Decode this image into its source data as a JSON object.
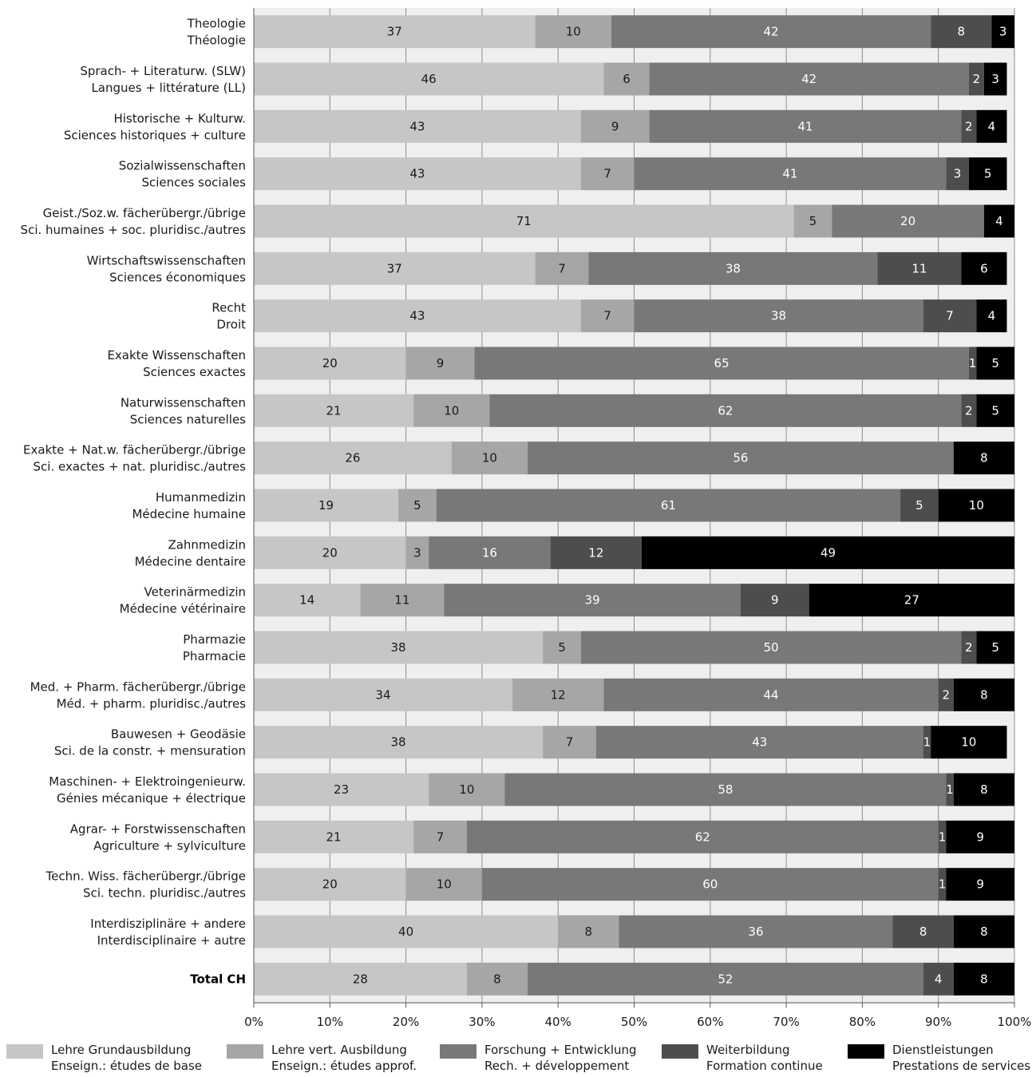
{
  "chart_data": {
    "type": "bar",
    "orientation": "horizontal",
    "stacked": true,
    "xlim": [
      0,
      100
    ],
    "x_tick_labels": [
      "0%",
      "10%",
      "20%",
      "30%",
      "40%",
      "50%",
      "60%",
      "70%",
      "80%",
      "90%",
      "100%"
    ],
    "grid": true,
    "legend_position": "bottom",
    "categories": [
      {
        "line1": "Theologie",
        "line2": "Théologie"
      },
      {
        "line1": "Sprach- + Literaturw. (SLW)",
        "line2": "Langues + littérature (LL)"
      },
      {
        "line1": "Historische + Kulturw.",
        "line2": "Sciences historiques + culture"
      },
      {
        "line1": "Sozialwissenschaften",
        "line2": "Sciences sociales"
      },
      {
        "line1": "Geist./Soz.w. fächerübergr./übrige",
        "line2": "Sci. humaines + soc. pluridisc./autres"
      },
      {
        "line1": "Wirtschaftswissenschaften",
        "line2": "Sciences économiques"
      },
      {
        "line1": "Recht",
        "line2": "Droit"
      },
      {
        "line1": "Exakte Wissenschaften",
        "line2": "Sciences exactes"
      },
      {
        "line1": "Naturwissenschaften",
        "line2": "Sciences naturelles"
      },
      {
        "line1": "Exakte + Nat.w. fächerübergr./übrige",
        "line2": "Sci. exactes + nat. pluridisc./autres"
      },
      {
        "line1": "Humanmedizin",
        "line2": "Médecine humaine"
      },
      {
        "line1": "Zahnmedizin",
        "line2": "Médecine dentaire"
      },
      {
        "line1": "Veterinärmedizin",
        "line2": "Médecine vétérinaire"
      },
      {
        "line1": "Pharmazie",
        "line2": "Pharmacie"
      },
      {
        "line1": "Med. + Pharm. fächerübergr./übrige",
        "line2": "Méd. + pharm. pluridisc./autres"
      },
      {
        "line1": "Bauwesen + Geodäsie",
        "line2": "Sci. de la constr. + mensuration"
      },
      {
        "line1": "Maschinen- + Elektroingenieurw.",
        "line2": "Génies mécanique + électrique"
      },
      {
        "line1": "Agrar- + Forstwissenschaften",
        "line2": "Agriculture + sylviculture"
      },
      {
        "line1": "Techn. Wiss. fächerübergr./übrige",
        "line2": "Sci. techn. pluridisc./autres"
      },
      {
        "line1": "Interdisziplinäre + andere",
        "line2": "Interdisciplinaire + autre"
      },
      {
        "line1": "Total CH",
        "line2": "",
        "bold": true
      }
    ],
    "series": [
      {
        "name": "Lehre Grundausbildung",
        "name2": "Enseign.: études de base",
        "color": "#c6c6c6",
        "label_color": "#1a1a1a",
        "values": [
          37,
          46,
          43,
          43,
          71,
          37,
          43,
          20,
          21,
          26,
          19,
          20,
          14,
          38,
          34,
          38,
          23,
          21,
          20,
          40,
          28
        ]
      },
      {
        "name": "Lehre vert. Ausbildung",
        "name2": "Enseign.: études approf.",
        "color": "#a6a6a6",
        "label_color": "#1a1a1a",
        "values": [
          10,
          6,
          9,
          7,
          5,
          7,
          7,
          9,
          10,
          10,
          5,
          3,
          11,
          5,
          12,
          7,
          10,
          7,
          10,
          8,
          8
        ]
      },
      {
        "name": "Forschung + Entwicklung",
        "name2": "Rech. + développement",
        "color": "#787878",
        "label_color": "#ffffff",
        "values": [
          42,
          42,
          41,
          41,
          20,
          38,
          38,
          65,
          62,
          56,
          61,
          16,
          39,
          50,
          44,
          43,
          58,
          62,
          60,
          36,
          52
        ]
      },
      {
        "name": "Weiterbildung",
        "name2": "Formation continue",
        "color": "#4d4d4d",
        "label_color": "#ffffff",
        "values": [
          8,
          2,
          2,
          3,
          0,
          11,
          7,
          1,
          2,
          0,
          5,
          12,
          9,
          2,
          2,
          1,
          1,
          1,
          1,
          8,
          4
        ]
      },
      {
        "name": "Dienstleistungen",
        "name2": "Prestations de services",
        "color": "#000000",
        "label_color": "#ffffff",
        "values": [
          3,
          3,
          4,
          5,
          4,
          6,
          4,
          5,
          5,
          8,
          10,
          49,
          27,
          5,
          8,
          10,
          8,
          9,
          9,
          8,
          8
        ]
      }
    ]
  }
}
